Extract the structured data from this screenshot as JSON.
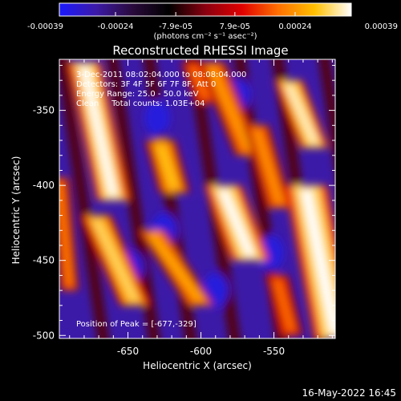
{
  "chart_data": {
    "type": "heatmap",
    "title": "Reconstructed RHESSI Image",
    "xlabel": "Heliocentric X (arcsec)",
    "ylabel": "Heliocentric Y (arcsec)",
    "xlim": [
      -697,
      -508
    ],
    "ylim": [
      -502,
      -316
    ],
    "x_ticks": [
      -650,
      -600,
      -550
    ],
    "y_ticks": [
      -350,
      -400,
      -450,
      -500
    ],
    "x_tick_labels": [
      "-650",
      "-600",
      "-550"
    ],
    "y_tick_labels": [
      "-350",
      "-400",
      "-450",
      "-500"
    ],
    "colorbar": {
      "range": [
        -0.00039,
        0.00039
      ],
      "ticks": [
        -0.00039,
        -0.00024,
        -7.9e-05,
        7.9e-05,
        0.00024,
        0.00039
      ],
      "tick_labels": [
        "-0.00039",
        "-0.00024",
        "-7.9e-05",
        "7.9e-05",
        "0.00024",
        "0.00039"
      ],
      "unit_label": "(photons cm⁻² s⁻¹ asec⁻²)",
      "colormap": [
        "#1a1aff",
        "#3c1aa8",
        "#2a0a3c",
        "#000000",
        "#8a0010",
        "#e00000",
        "#ff7000",
        "#ffc000",
        "#ffffff"
      ]
    },
    "annotations": {
      "time_range": "3-Dec-2011 08:02:04.000 to 08:08:04.000",
      "detectors": "Detectors: 3F 4F 5F 6F 7F 8F, Att 0",
      "energy_range": "Energy Range: 25.0 - 50.0 keV",
      "clean_counts": "Clean     Total counts: 1.03E+04",
      "peak_position": "Position of Peak = [-677,-329]"
    },
    "peak": {
      "x": -677,
      "y": -329
    },
    "streaks": [
      {
        "x_top": -680,
        "x_bot": -660,
        "y_top": -318,
        "y_bot": -410,
        "width": 14,
        "value": 0.00039
      },
      {
        "x_top": -672,
        "x_bot": -645,
        "y_top": -420,
        "y_bot": -480,
        "width": 13,
        "value": 0.00033
      },
      {
        "x_top": -628,
        "x_bot": -618,
        "y_top": -370,
        "y_bot": -405,
        "width": 13,
        "value": 0.0003
      },
      {
        "x_top": -634,
        "x_bot": -600,
        "y_top": -430,
        "y_bot": -480,
        "width": 12,
        "value": 0.00027
      },
      {
        "x_top": -593,
        "x_bot": -567,
        "y_top": -318,
        "y_bot": -380,
        "width": 12,
        "value": 0.00025
      },
      {
        "x_top": -585,
        "x_bot": -566,
        "y_top": -400,
        "y_bot": -450,
        "width": 16,
        "value": 0.00039
      },
      {
        "x_top": -562,
        "x_bot": -546,
        "y_top": -360,
        "y_bot": -415,
        "width": 11,
        "value": 0.00024
      },
      {
        "x_top": -540,
        "x_bot": -522,
        "y_top": -330,
        "y_bot": -375,
        "width": 12,
        "value": 0.00037
      },
      {
        "x_top": -528,
        "x_bot": -508,
        "y_top": -400,
        "y_bot": -502,
        "width": 18,
        "value": 0.00039
      },
      {
        "x_top": -697,
        "x_bot": -690,
        "y_top": -395,
        "y_bot": -470,
        "width": 8,
        "value": 0.00022
      },
      {
        "x_top": -548,
        "x_bot": -538,
        "y_top": -460,
        "y_bot": -500,
        "width": 10,
        "value": 0.0002
      },
      {
        "x_top": -606,
        "x_bot": -596,
        "y_top": -318,
        "y_bot": -345,
        "width": 10,
        "value": 0.0002
      }
    ]
  },
  "footer": {
    "timestamp": "16-May-2022 16:45"
  }
}
